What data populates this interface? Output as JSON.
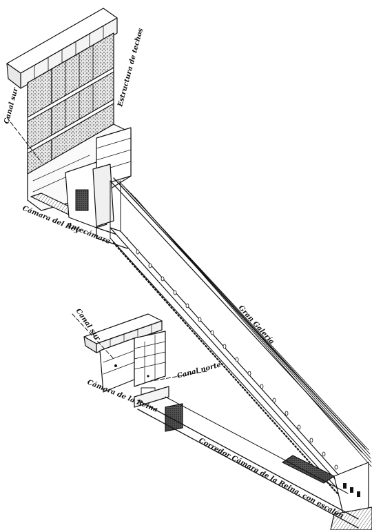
{
  "labels": {
    "canal_sur_upper": "Canal sur",
    "estructura_techos": "Estructura de techos",
    "camara_rey": "Cámara del Rey",
    "antecamara": "Antecámara",
    "gran_galeria": "Gran Galería",
    "canal_sur_lower": "Canal sur",
    "canal_norte": "Canal norte",
    "camara_reina": "Cámara de la Reina",
    "corredor": "Corredor Cámara de la Reina, con escalón"
  },
  "colors": {
    "ink": "#111111",
    "stone_fill": "#d8d8d8",
    "paper": "#ffffff"
  }
}
